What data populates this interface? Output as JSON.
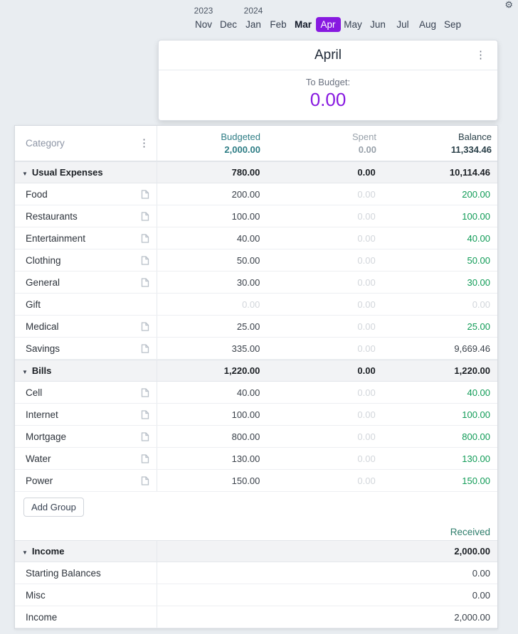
{
  "colors": {
    "bg": "#e9edf1",
    "accent": "#8719e0",
    "teal": "#2e7d85",
    "green": "#0f9b56",
    "received": "#2e7d6b",
    "darkheader": "#2a4049",
    "spentgray": "#98a1aa",
    "faded": "#d2d6db"
  },
  "settings": {
    "gear_icon": "gear"
  },
  "month_picker": {
    "years": [
      {
        "label": "2023",
        "month_index": 0
      },
      {
        "label": "2024",
        "month_index": 2
      }
    ],
    "months": [
      {
        "label": "Nov"
      },
      {
        "label": "Dec"
      },
      {
        "label": "Jan"
      },
      {
        "label": "Feb"
      },
      {
        "label": "Mar",
        "state": "current"
      },
      {
        "label": "Apr",
        "state": "selected"
      },
      {
        "label": "May"
      },
      {
        "label": "Jun"
      },
      {
        "label": "Jul"
      },
      {
        "label": "Aug"
      },
      {
        "label": "Sep"
      }
    ]
  },
  "month_card": {
    "title": "April",
    "menu_icon": "kebab-menu",
    "to_budget_label": "To Budget:",
    "to_budget_value": "0.00"
  },
  "table": {
    "header": {
      "category_label": "Category",
      "budgeted_label": "Budgeted",
      "budgeted_total": "2,000.00",
      "spent_label": "Spent",
      "spent_total": "0.00",
      "balance_label": "Balance",
      "balance_total": "11,334.46"
    },
    "groups": [
      {
        "name": "Usual Expenses",
        "budgeted": "780.00",
        "spent": "0.00",
        "balance": "10,114.46",
        "rows": [
          {
            "name": "Food",
            "note": true,
            "budgeted": "200.00",
            "spent": "0.00",
            "balance": "200.00",
            "balance_style": "green"
          },
          {
            "name": "Restaurants",
            "note": true,
            "budgeted": "100.00",
            "spent": "0.00",
            "balance": "100.00",
            "balance_style": "green"
          },
          {
            "name": "Entertainment",
            "note": true,
            "budgeted": "40.00",
            "spent": "0.00",
            "balance": "40.00",
            "balance_style": "green"
          },
          {
            "name": "Clothing",
            "note": true,
            "budgeted": "50.00",
            "spent": "0.00",
            "balance": "50.00",
            "balance_style": "green"
          },
          {
            "name": "General",
            "note": true,
            "budgeted": "30.00",
            "spent": "0.00",
            "balance": "30.00",
            "balance_style": "green"
          },
          {
            "name": "Gift",
            "note": false,
            "budgeted": "0.00",
            "budgeted_faded": true,
            "spent": "0.00",
            "balance": "0.00",
            "balance_style": "faded"
          },
          {
            "name": "Medical",
            "note": true,
            "budgeted": "25.00",
            "spent": "0.00",
            "balance": "25.00",
            "balance_style": "green"
          },
          {
            "name": "Savings",
            "note": true,
            "budgeted": "335.00",
            "spent": "0.00",
            "balance": "9,669.46",
            "balance_style": "dark"
          }
        ]
      },
      {
        "name": "Bills",
        "budgeted": "1,220.00",
        "spent": "0.00",
        "balance": "1,220.00",
        "rows": [
          {
            "name": "Cell",
            "note": true,
            "budgeted": "40.00",
            "spent": "0.00",
            "balance": "40.00",
            "balance_style": "green"
          },
          {
            "name": "Internet",
            "note": true,
            "budgeted": "100.00",
            "spent": "0.00",
            "balance": "100.00",
            "balance_style": "green"
          },
          {
            "name": "Mortgage",
            "note": true,
            "budgeted": "800.00",
            "spent": "0.00",
            "balance": "800.00",
            "balance_style": "green"
          },
          {
            "name": "Water",
            "note": true,
            "budgeted": "130.00",
            "spent": "0.00",
            "balance": "130.00",
            "balance_style": "green"
          },
          {
            "name": "Power",
            "note": true,
            "budgeted": "150.00",
            "spent": "0.00",
            "balance": "150.00",
            "balance_style": "green"
          }
        ]
      }
    ],
    "add_group_label": "Add Group",
    "income_section": {
      "received_label": "Received",
      "group": {
        "name": "Income",
        "received": "2,000.00",
        "rows": [
          {
            "name": "Starting Balances",
            "received": "0.00"
          },
          {
            "name": "Misc",
            "received": "0.00"
          },
          {
            "name": "Income",
            "received": "2,000.00"
          }
        ]
      }
    }
  }
}
